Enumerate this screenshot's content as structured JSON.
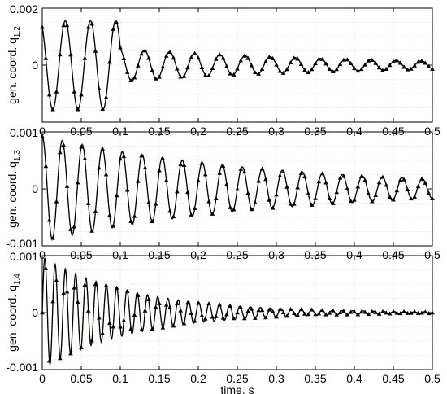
{
  "chart_data": [
    {
      "type": "line",
      "ylabel": "gen. coord. q",
      "ylabel_sub": "1,2",
      "xlabel": "",
      "xlim": [
        0,
        0.5
      ],
      "ylim": [
        -0.002,
        0.002
      ],
      "x_ticks": [
        "0",
        "0.05",
        "0.1",
        "0.15",
        "0.2",
        "0.25",
        "0.3",
        "0.35",
        "0.4",
        "0.45",
        "0.5"
      ],
      "y_ticks": [
        {
          "value": 0.002,
          "label": "0.002"
        },
        {
          "value": 0,
          "label": "0"
        }
      ],
      "grid": true,
      "series": [
        {
          "style": "solid-line-with-triangles",
          "color": "#000000",
          "model": "segments",
          "segments": [
            {
              "t0": 0.0,
              "t1": 0.1,
              "A": 0.00155,
              "f": 31.0,
              "phase": 2.1,
              "decay": 0.0
            },
            {
              "t0": 0.1,
              "t1": 0.5,
              "A": 0.00058,
              "f": 31.0,
              "phase": 1.2,
              "decay": 3.5
            }
          ],
          "x": [
            0.0,
            0.016,
            0.032,
            0.048,
            0.064,
            0.08,
            0.1,
            0.15,
            0.2,
            0.3,
            0.4,
            0.5
          ],
          "values": [
            0.001,
            -0.0013,
            0.0015,
            -0.0016,
            0.0014,
            -0.0008,
            0.0006,
            -0.0004,
            0.0004,
            -0.0003,
            0.00025,
            0.0002
          ]
        },
        {
          "style": "faint-line",
          "color": "#ff8a8a"
        }
      ]
    },
    {
      "type": "line",
      "ylabel": "gen. coord. q",
      "ylabel_sub": "1,3",
      "xlabel": "",
      "xlim": [
        0,
        0.5
      ],
      "ylim": [
        -0.001,
        0.001
      ],
      "x_ticks": [
        "0",
        "0.05",
        "0.1",
        "0.15",
        "0.2",
        "0.25",
        "0.3",
        "0.35",
        "0.4",
        "0.45",
        "0.5"
      ],
      "y_ticks": [
        {
          "value": 0.001,
          "label": "0.001"
        },
        {
          "value": 0,
          "label": "0"
        },
        {
          "value": -0.001,
          "label": "-0.001"
        }
      ],
      "grid": true,
      "series": [
        {
          "style": "solid-line-with-triangles",
          "color": "#000000",
          "model": "segments",
          "segments": [
            {
              "t0": 0.0,
              "t1": 0.5,
              "A": 0.00092,
              "f": 39.0,
              "phase": 1.57,
              "decay": 3.4
            }
          ],
          "x": [
            0.0,
            0.013,
            0.026,
            0.1,
            0.2,
            0.3,
            0.4,
            0.5
          ],
          "values": [
            0.0009,
            -0.0009,
            0.00085,
            -0.0006,
            0.0005,
            -0.0003,
            0.00025,
            -0.0001
          ]
        },
        {
          "style": "faint-line",
          "color": "#ff8a8a"
        }
      ]
    },
    {
      "type": "line",
      "ylabel": "gen. coord. q",
      "ylabel_sub": "1,4",
      "xlabel": "time, s",
      "xlim": [
        0,
        0.5
      ],
      "ylim": [
        -0.001,
        0.001
      ],
      "x_ticks": [
        "0",
        "0.05",
        "0.1",
        "0.15",
        "0.2",
        "0.25",
        "0.3",
        "0.35",
        "0.4",
        "0.45",
        "0.5"
      ],
      "y_ticks": [
        {
          "value": 0.001,
          "label": "0.001"
        },
        {
          "value": 0,
          "label": "0"
        },
        {
          "value": -0.001,
          "label": "-0.001"
        }
      ],
      "grid": true,
      "series": [
        {
          "style": "solid-line-with-triangles",
          "color": "#000000",
          "model": "segments",
          "segments": [
            {
              "t0": 0.0,
              "t1": 0.5,
              "A": 0.00098,
              "f": 76.0,
              "phase": 0.0,
              "decay": 8.5
            }
          ],
          "x": [
            0.0,
            0.007,
            0.013,
            0.1,
            0.2,
            0.3,
            0.4,
            0.5
          ],
          "values": [
            0.0,
            -0.00095,
            0.00092,
            -0.0005,
            0.0002,
            -0.0001,
            5e-05,
            0.0
          ]
        },
        {
          "style": "faint-line",
          "color": "#ff8a8a"
        }
      ]
    }
  ]
}
